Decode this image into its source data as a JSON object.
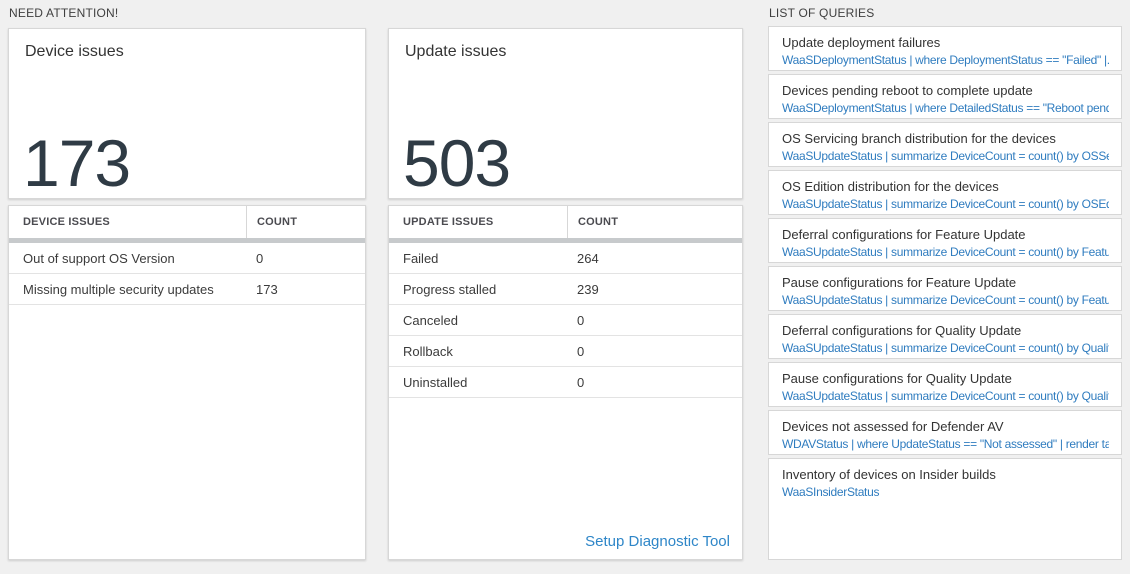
{
  "need_attention": {
    "label": "NEED ATTENTION!",
    "device_tile": {
      "title": "Device issues",
      "value": "173"
    },
    "device_table": {
      "header_issue": "DEVICE ISSUES",
      "header_count": "COUNT",
      "rows": [
        {
          "issue": "Out of support OS Version",
          "count": "0"
        },
        {
          "issue": "Missing multiple security updates",
          "count": "173"
        }
      ]
    },
    "update_tile": {
      "title": "Update issues",
      "value": "503"
    },
    "update_table": {
      "header_issue": "UPDATE ISSUES",
      "header_count": "COUNT",
      "rows": [
        {
          "issue": "Failed",
          "count": "264"
        },
        {
          "issue": "Progress stalled",
          "count": "239"
        },
        {
          "issue": "Canceled",
          "count": "0"
        },
        {
          "issue": "Rollback",
          "count": "0"
        },
        {
          "issue": "Uninstalled",
          "count": "0"
        }
      ],
      "link_label": "Setup Diagnostic Tool"
    }
  },
  "queries": {
    "label": "LIST OF QUERIES",
    "items": [
      {
        "title": "Update deployment failures",
        "query": "WaaSDeploymentStatus | where DeploymentStatus == \"Failed\" |..."
      },
      {
        "title": "Devices pending reboot to complete update",
        "query": "WaaSDeploymentStatus | where DetailedStatus == \"Reboot pend..."
      },
      {
        "title": "OS Servicing branch distribution for the devices",
        "query": "WaaSUpdateStatus | summarize DeviceCount = count() by OSSer..."
      },
      {
        "title": "OS Edition distribution for the devices",
        "query": "WaaSUpdateStatus | summarize DeviceCount = count() by OSEdit..."
      },
      {
        "title": "Deferral configurations for Feature Update",
        "query": "WaaSUpdateStatus | summarize DeviceCount = count() by Featur..."
      },
      {
        "title": "Pause configurations for Feature Update",
        "query": "WaaSUpdateStatus | summarize DeviceCount = count() by Featur..."
      },
      {
        "title": "Deferral configurations for Quality Update",
        "query": "WaaSUpdateStatus | summarize DeviceCount = count() by Qualit..."
      },
      {
        "title": "Pause configurations for Quality Update",
        "query": "WaaSUpdateStatus | summarize DeviceCount = count() by Qualit..."
      },
      {
        "title": "Devices not assessed for Defender AV",
        "query": "WDAVStatus | where UpdateStatus == \"Not assessed\" | render ta..."
      },
      {
        "title": "Inventory of devices on Insider builds",
        "query": "WaaSInsiderStatus"
      }
    ]
  },
  "colors": {
    "page_background": "#f0f0f0",
    "card_background": "#ffffff",
    "big_number": "#2f3b45",
    "query_code_blue": "#2f7cbf",
    "link_blue": "#2e86c8",
    "header_divider": "#c7cacc"
  }
}
